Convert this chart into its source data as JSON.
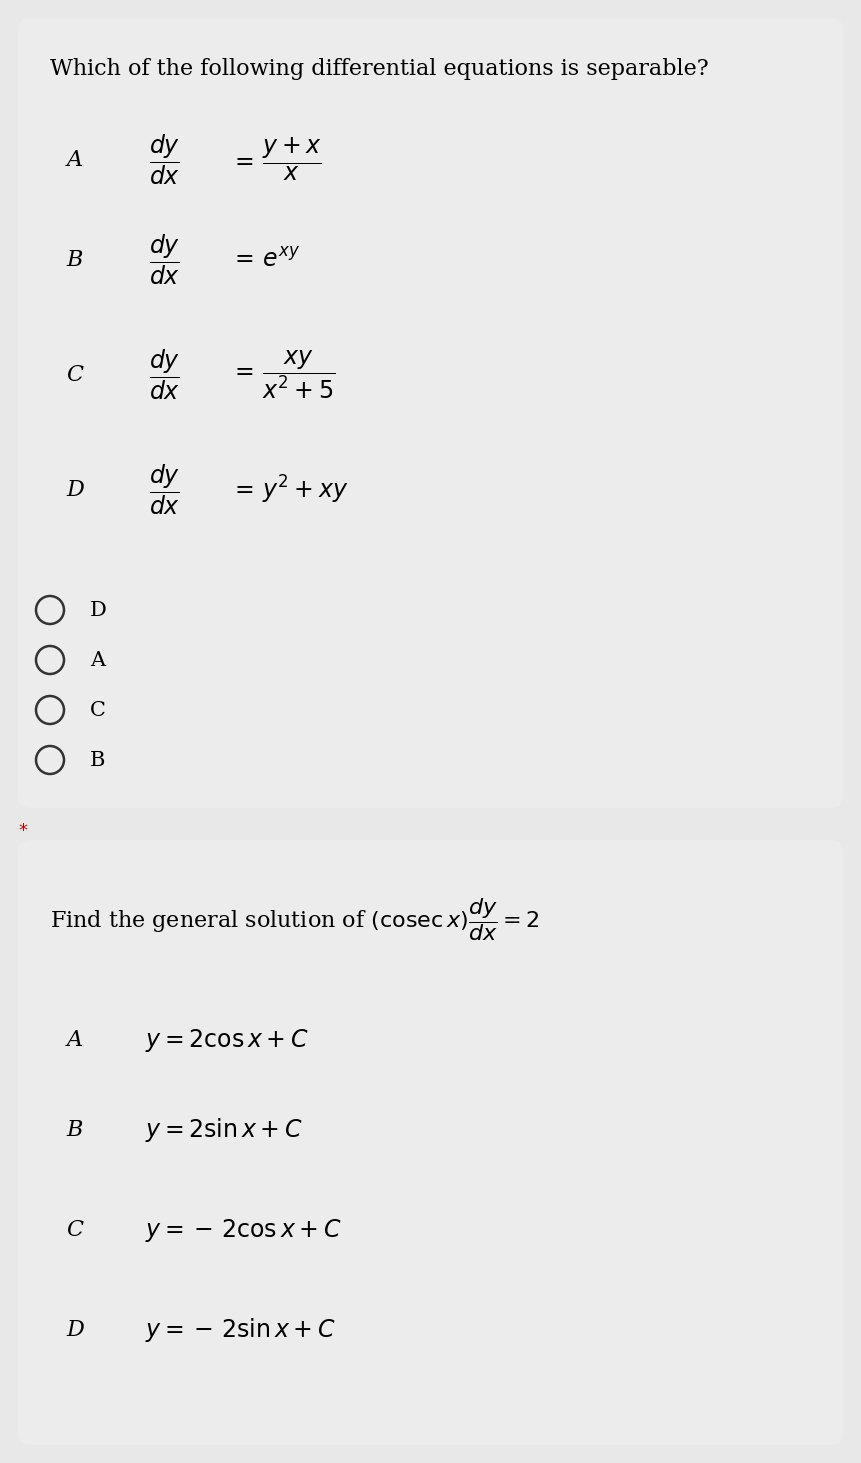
{
  "bg_color": "#e8e8e8",
  "box1_bg": "#ececec",
  "box2_bg": "#ececec",
  "q1_title": "Which of the following differential equations is separable?",
  "q1_labels": [
    "A",
    "B",
    "C",
    "D"
  ],
  "q1_rhs": [
    "$=\\,\\dfrac{y+x}{x}$",
    "$=\\,e^{xy}$",
    "$=\\,\\dfrac{xy}{x^{2}+5}$",
    "$=\\,y^{2}+xy$"
  ],
  "q1_answers": [
    "D",
    "A",
    "C",
    "B"
  ],
  "q2_title": "Find the general solution of $\\left(\\mathrm{cosec}\\,x\\right)\\dfrac{dy}{dx}=2$",
  "q2_labels": [
    "A",
    "B",
    "C",
    "D"
  ],
  "q2_options": [
    "$y = 2\\cos x + C$",
    "$y = 2\\sin x + C$",
    "$y = -\\,2\\cos x + C$",
    "$y = -\\,2\\sin x + C$"
  ],
  "title_fontsize": 16,
  "label_fontsize": 16,
  "eq_fontsize": 17,
  "ans_fontsize": 15,
  "q2_eq_fontsize": 17
}
